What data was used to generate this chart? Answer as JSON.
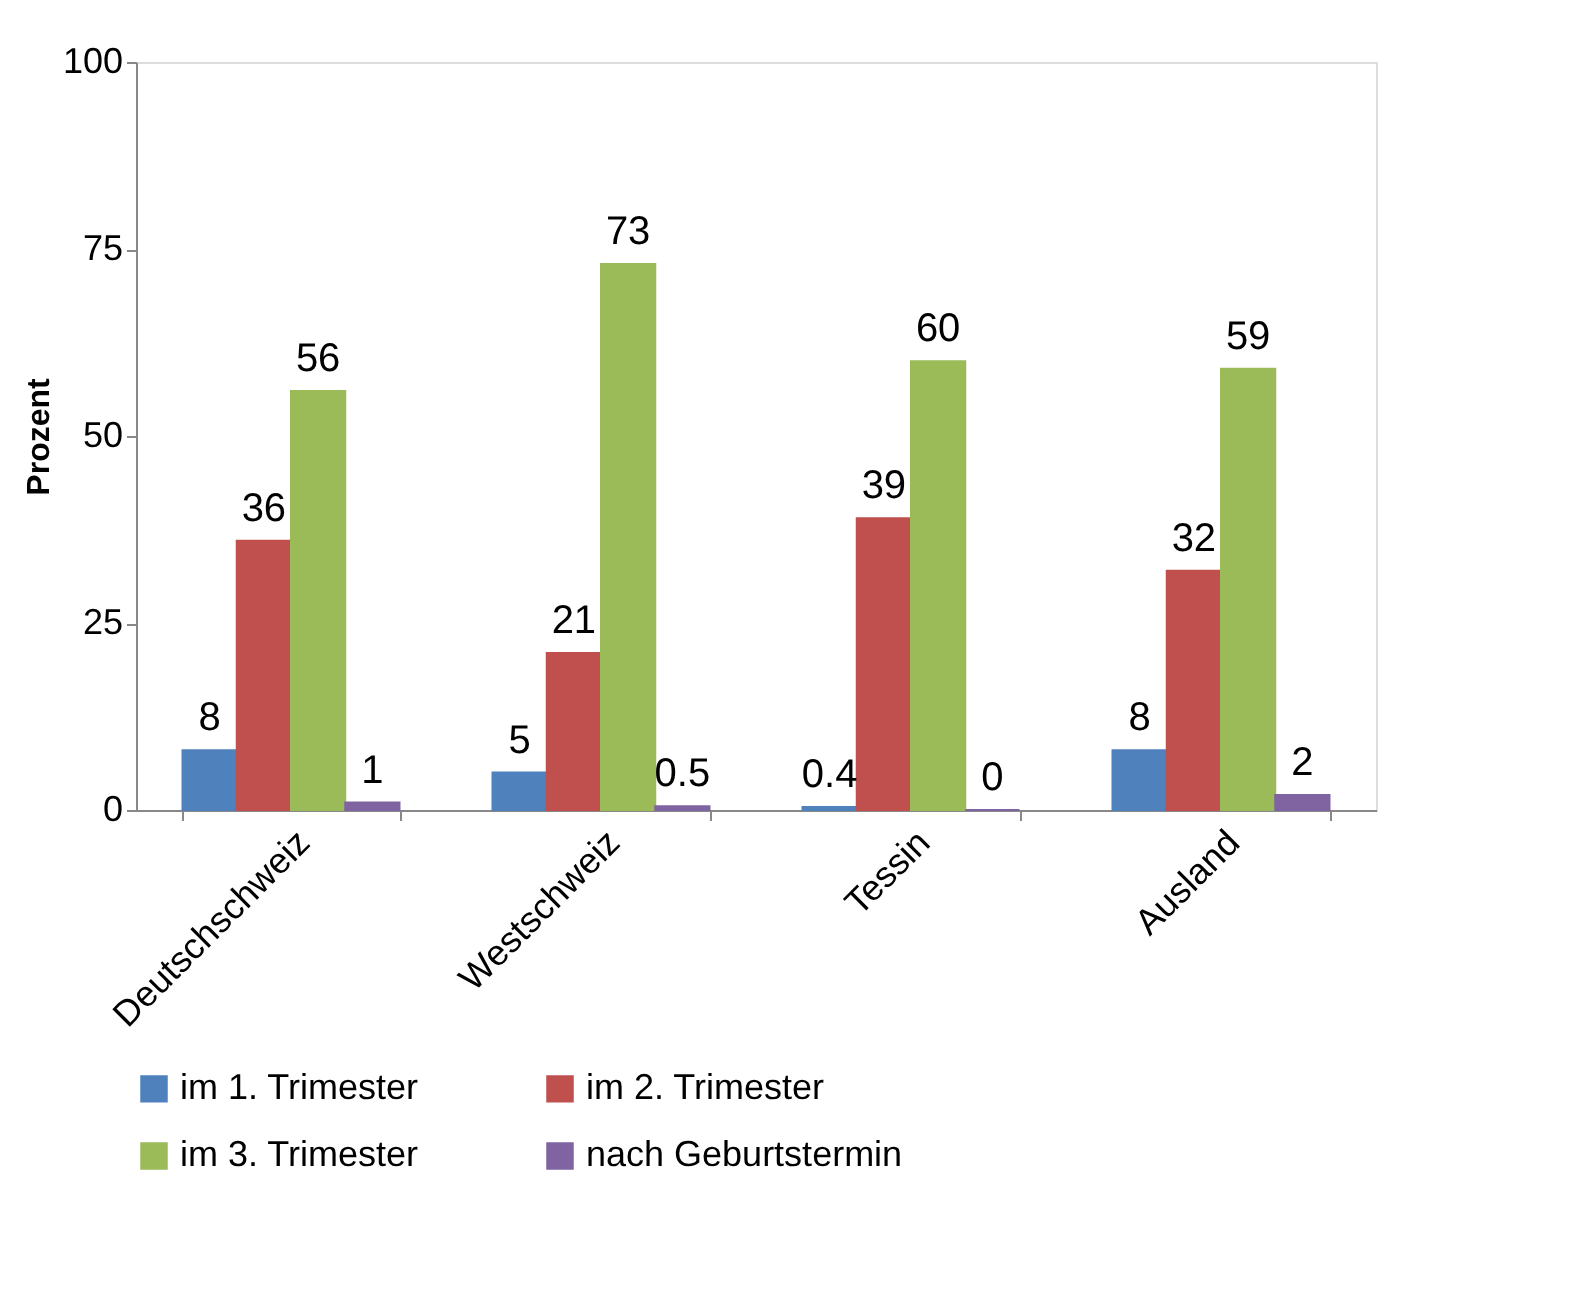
{
  "chart_data": {
    "type": "bar",
    "ylabel": "Prozent",
    "categories": [
      "Deutschschweiz",
      "Westschweiz",
      "Tessin",
      "Ausland"
    ],
    "series": [
      {
        "name": "im 1. Trimester",
        "color": "#4f81bd",
        "values": [
          8,
          5,
          0.4,
          8
        ]
      },
      {
        "name": "im 2. Trimester",
        "color": "#c0504d",
        "values": [
          36,
          21,
          39,
          32
        ]
      },
      {
        "name": "im 3. Trimester",
        "color": "#9bbb59",
        "values": [
          56,
          73,
          60,
          59
        ]
      },
      {
        "name": "nach Geburtstermin",
        "color": "#8064a2",
        "values": [
          1,
          0.5,
          0,
          2
        ]
      }
    ],
    "ylim": [
      0,
      100
    ],
    "yticks": [
      0,
      25,
      50,
      75,
      100
    ],
    "grid": false,
    "legend": "bottom",
    "data_labels": true
  }
}
